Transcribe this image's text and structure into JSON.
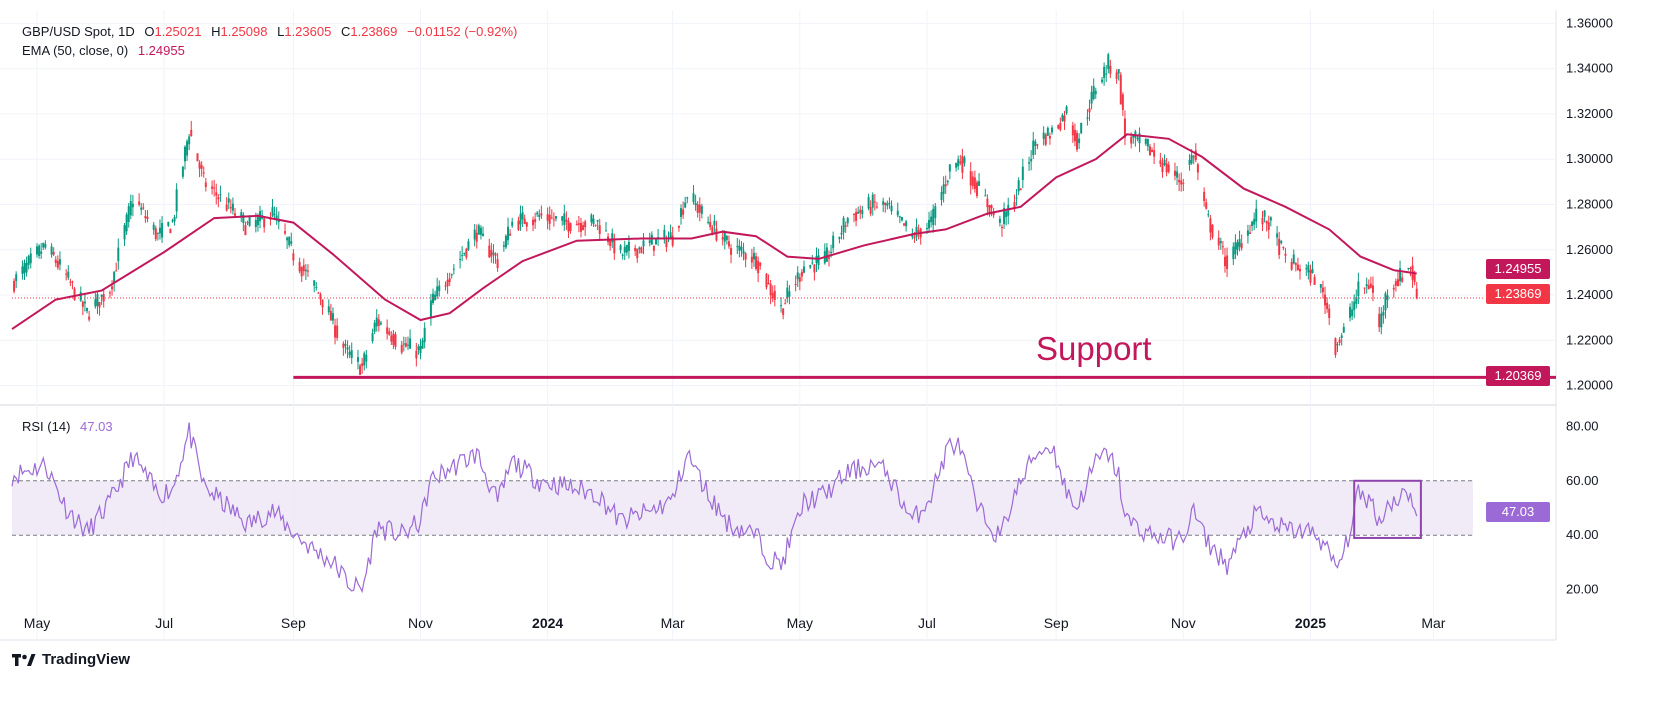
{
  "header": {
    "symbol": "GBP/USD Spot, 1D",
    "o_label": "O",
    "o_value": "1.25021",
    "h_label": "H",
    "h_value": "1.25098",
    "l_label": "L",
    "l_value": "1.23605",
    "c_label": "C",
    "c_value": "1.23869",
    "change": "−0.01152 (−0.92%)"
  },
  "ema": {
    "label": "EMA (50, close, 0)",
    "value": "1.24955"
  },
  "rsi": {
    "label": "RSI (14)",
    "value": "47.03"
  },
  "price_tags": {
    "ema": "1.24955",
    "last": "1.23869",
    "support": "1.20369",
    "rsi": "47.03"
  },
  "annotation": {
    "support_text": "Support"
  },
  "brand": {
    "name": "TradingView"
  },
  "colors": {
    "up": "#089981",
    "down": "#f23645",
    "ema": "#c2185b",
    "support": "#c2185b",
    "rsi_line": "#9c6ad6",
    "rsi_band": "#ede7f6"
  },
  "chart_data": [
    {
      "type": "candlestick",
      "title": "GBP/USD Spot, 1D",
      "y_ticks": [
        "1.20000",
        "1.22000",
        "1.24000",
        "1.26000",
        "1.28000",
        "1.30000",
        "1.32000",
        "1.34000",
        "1.36000"
      ],
      "y_tick_values": [
        1.2,
        1.22,
        1.24,
        1.26,
        1.28,
        1.3,
        1.32,
        1.34,
        1.36
      ],
      "ylim": [
        1.195,
        1.365
      ],
      "x_ticks": [
        "May",
        "Jul",
        "Sep",
        "Nov",
        "2024",
        "Mar",
        "May",
        "Jul",
        "Sep",
        "Nov",
        "2025",
        "Mar"
      ],
      "x_tick_bold": [
        false,
        false,
        false,
        false,
        true,
        false,
        false,
        false,
        false,
        false,
        true,
        false
      ],
      "x_tick_dates": [
        "2023-05-01",
        "2023-07-01",
        "2023-09-01",
        "2023-11-01",
        "2024-01-01",
        "2024-03-01",
        "2024-05-01",
        "2024-07-01",
        "2024-09-01",
        "2024-11-01",
        "2025-01-01",
        "2025-03-01"
      ],
      "xlim": [
        "2023-04-19",
        "2025-03-20"
      ],
      "price_path": [
        [
          "2023-04-19",
          1.245
        ],
        [
          "2023-05-05",
          1.262
        ],
        [
          "2023-05-15",
          1.248
        ],
        [
          "2023-05-25",
          1.232
        ],
        [
          "2023-06-05",
          1.243
        ],
        [
          "2023-06-16",
          1.283
        ],
        [
          "2023-06-28",
          1.266
        ],
        [
          "2023-07-05",
          1.272
        ],
        [
          "2023-07-13",
          1.313
        ],
        [
          "2023-07-20",
          1.29
        ],
        [
          "2023-08-01",
          1.279
        ],
        [
          "2023-08-10",
          1.27
        ],
        [
          "2023-08-22",
          1.276
        ],
        [
          "2023-09-01",
          1.258
        ],
        [
          "2023-09-15",
          1.238
        ],
        [
          "2023-09-26",
          1.215
        ],
        [
          "2023-10-04",
          1.208
        ],
        [
          "2023-10-11",
          1.229
        ],
        [
          "2023-10-23",
          1.218
        ],
        [
          "2023-11-01",
          1.215
        ],
        [
          "2023-11-06",
          1.236
        ],
        [
          "2023-11-14",
          1.248
        ],
        [
          "2023-11-28",
          1.268
        ],
        [
          "2023-12-08",
          1.255
        ],
        [
          "2023-12-15",
          1.272
        ],
        [
          "2023-12-28",
          1.275
        ],
        [
          "2024-01-10",
          1.272
        ],
        [
          "2024-01-25",
          1.272
        ],
        [
          "2024-02-05",
          1.258
        ],
        [
          "2024-02-20",
          1.263
        ],
        [
          "2024-03-01",
          1.266
        ],
        [
          "2024-03-08",
          1.285
        ],
        [
          "2024-03-18",
          1.272
        ],
        [
          "2024-03-28",
          1.262
        ],
        [
          "2024-04-10",
          1.256
        ],
        [
          "2024-04-16",
          1.244
        ],
        [
          "2024-04-22",
          1.234
        ],
        [
          "2024-05-03",
          1.253
        ],
        [
          "2024-05-13",
          1.255
        ],
        [
          "2024-05-24",
          1.274
        ],
        [
          "2024-06-05",
          1.28
        ],
        [
          "2024-06-12",
          1.279
        ],
        [
          "2024-06-24",
          1.266
        ],
        [
          "2024-07-03",
          1.272
        ],
        [
          "2024-07-12",
          1.296
        ],
        [
          "2024-07-17",
          1.3
        ],
        [
          "2024-07-25",
          1.288
        ],
        [
          "2024-08-05",
          1.271
        ],
        [
          "2024-08-12",
          1.282
        ],
        [
          "2024-08-22",
          1.308
        ],
        [
          "2024-08-30",
          1.312
        ],
        [
          "2024-09-06",
          1.321
        ],
        [
          "2024-09-11",
          1.308
        ],
        [
          "2024-09-20",
          1.332
        ],
        [
          "2024-09-26",
          1.342
        ],
        [
          "2024-10-01",
          1.337
        ],
        [
          "2024-10-04",
          1.31
        ],
        [
          "2024-10-14",
          1.306
        ],
        [
          "2024-10-22",
          1.298
        ],
        [
          "2024-10-31",
          1.29
        ],
        [
          "2024-11-06",
          1.303
        ],
        [
          "2024-11-12",
          1.275
        ],
        [
          "2024-11-22",
          1.254
        ],
        [
          "2024-12-06",
          1.275
        ],
        [
          "2024-12-12",
          1.272
        ],
        [
          "2024-12-20",
          1.256
        ],
        [
          "2025-01-03",
          1.248
        ],
        [
          "2025-01-08",
          1.238
        ],
        [
          "2025-01-13",
          1.218
        ],
        [
          "2025-01-17",
          1.224
        ],
        [
          "2025-01-24",
          1.242
        ],
        [
          "2025-01-30",
          1.245
        ],
        [
          "2025-02-03",
          1.226
        ],
        [
          "2025-02-07",
          1.243
        ],
        [
          "2025-02-12",
          1.247
        ],
        [
          "2025-02-18",
          1.253
        ],
        [
          "2025-02-21",
          1.239
        ]
      ],
      "ema_path": [
        [
          "2023-04-19",
          1.225
        ],
        [
          "2023-05-10",
          1.238
        ],
        [
          "2023-06-01",
          1.242
        ],
        [
          "2023-07-01",
          1.259
        ],
        [
          "2023-07-25",
          1.274
        ],
        [
          "2023-08-15",
          1.275
        ],
        [
          "2023-09-01",
          1.272
        ],
        [
          "2023-09-20",
          1.258
        ],
        [
          "2023-10-15",
          1.238
        ],
        [
          "2023-11-01",
          1.229
        ],
        [
          "2023-11-15",
          1.232
        ],
        [
          "2023-12-01",
          1.243
        ],
        [
          "2023-12-20",
          1.255
        ],
        [
          "2024-01-15",
          1.264
        ],
        [
          "2024-02-15",
          1.265
        ],
        [
          "2024-03-10",
          1.265
        ],
        [
          "2024-03-25",
          1.268
        ],
        [
          "2024-04-10",
          1.266
        ],
        [
          "2024-04-25",
          1.257
        ],
        [
          "2024-05-10",
          1.256
        ],
        [
          "2024-06-01",
          1.262
        ],
        [
          "2024-06-25",
          1.267
        ],
        [
          "2024-07-10",
          1.269
        ],
        [
          "2024-07-30",
          1.276
        ],
        [
          "2024-08-15",
          1.279
        ],
        [
          "2024-09-01",
          1.292
        ],
        [
          "2024-09-20",
          1.3
        ],
        [
          "2024-10-05",
          1.311
        ],
        [
          "2024-10-25",
          1.309
        ],
        [
          "2024-11-10",
          1.301
        ],
        [
          "2024-11-30",
          1.287
        ],
        [
          "2024-12-20",
          1.279
        ],
        [
          "2025-01-10",
          1.269
        ],
        [
          "2025-01-25",
          1.257
        ],
        [
          "2025-02-10",
          1.251
        ],
        [
          "2025-02-21",
          1.24955
        ]
      ],
      "support_level": 1.20369,
      "support_start": "2023-09-01",
      "last_close": 1.23869,
      "ema_value": 1.24955
    },
    {
      "type": "line",
      "title": "RSI (14)",
      "y_ticks": [
        "20.00",
        "40.00",
        "60.00",
        "80.00"
      ],
      "y_tick_values": [
        20,
        40,
        60,
        80
      ],
      "ylim": [
        14,
        86
      ],
      "band": [
        40,
        60
      ],
      "rsi_path": [
        [
          "2023-04-19",
          62
        ],
        [
          "2023-05-05",
          66
        ],
        [
          "2023-05-15",
          50
        ],
        [
          "2023-05-25",
          41
        ],
        [
          "2023-06-05",
          52
        ],
        [
          "2023-06-16",
          69
        ],
        [
          "2023-06-28",
          55
        ],
        [
          "2023-07-05",
          57
        ],
        [
          "2023-07-13",
          78
        ],
        [
          "2023-07-20",
          58
        ],
        [
          "2023-08-01",
          50
        ],
        [
          "2023-08-10",
          44
        ],
        [
          "2023-08-22",
          49
        ],
        [
          "2023-09-01",
          41
        ],
        [
          "2023-09-10",
          35
        ],
        [
          "2023-09-20",
          30
        ],
        [
          "2023-09-28",
          22
        ],
        [
          "2023-10-04",
          20
        ],
        [
          "2023-10-11",
          43
        ],
        [
          "2023-10-23",
          40
        ],
        [
          "2023-11-01",
          45
        ],
        [
          "2023-11-06",
          60
        ],
        [
          "2023-11-14",
          64
        ],
        [
          "2023-11-28",
          70
        ],
        [
          "2023-12-08",
          52
        ],
        [
          "2023-12-15",
          67
        ],
        [
          "2023-12-28",
          60
        ],
        [
          "2024-01-10",
          58
        ],
        [
          "2024-01-25",
          55
        ],
        [
          "2024-02-05",
          45
        ],
        [
          "2024-02-20",
          49
        ],
        [
          "2024-03-01",
          53
        ],
        [
          "2024-03-08",
          70
        ],
        [
          "2024-03-18",
          55
        ],
        [
          "2024-03-28",
          44
        ],
        [
          "2024-04-10",
          40
        ],
        [
          "2024-04-16",
          32
        ],
        [
          "2024-04-22",
          29
        ],
        [
          "2024-05-03",
          52
        ],
        [
          "2024-05-13",
          55
        ],
        [
          "2024-05-24",
          63
        ],
        [
          "2024-06-05",
          66
        ],
        [
          "2024-06-12",
          63
        ],
        [
          "2024-06-24",
          45
        ],
        [
          "2024-07-03",
          55
        ],
        [
          "2024-07-12",
          74
        ],
        [
          "2024-07-17",
          72
        ],
        [
          "2024-07-25",
          50
        ],
        [
          "2024-08-05",
          39
        ],
        [
          "2024-08-12",
          55
        ],
        [
          "2024-08-22",
          70
        ],
        [
          "2024-08-30",
          73
        ],
        [
          "2024-09-06",
          56
        ],
        [
          "2024-09-11",
          50
        ],
        [
          "2024-09-20",
          67
        ],
        [
          "2024-09-26",
          70
        ],
        [
          "2024-10-01",
          62
        ],
        [
          "2024-10-04",
          46
        ],
        [
          "2024-10-14",
          41
        ],
        [
          "2024-10-22",
          39
        ],
        [
          "2024-10-31",
          38
        ],
        [
          "2024-11-06",
          49
        ],
        [
          "2024-11-12",
          38
        ],
        [
          "2024-11-22",
          29
        ],
        [
          "2024-12-06",
          48
        ],
        [
          "2024-12-12",
          45
        ],
        [
          "2024-12-20",
          42
        ],
        [
          "2025-01-03",
          41
        ],
        [
          "2025-01-08",
          36
        ],
        [
          "2025-01-13",
          28
        ],
        [
          "2025-01-17",
          33
        ],
        [
          "2025-01-24",
          55
        ],
        [
          "2025-01-30",
          53
        ],
        [
          "2025-02-03",
          45
        ],
        [
          "2025-02-07",
          51
        ],
        [
          "2025-02-12",
          54
        ],
        [
          "2025-02-18",
          56
        ],
        [
          "2025-02-21",
          47
        ]
      ],
      "highlight_box": {
        "x_start": "2025-01-22",
        "x_end": "2025-02-23",
        "y_low": 39,
        "y_high": 60
      },
      "last_value": 47.03
    }
  ]
}
